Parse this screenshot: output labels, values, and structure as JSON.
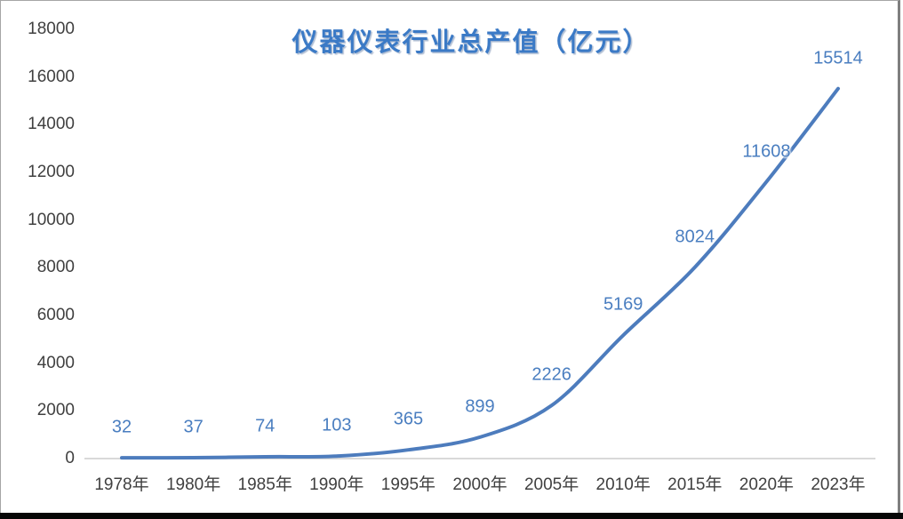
{
  "frame": {
    "background": "#ffffff",
    "border_color": "#a6a6a6",
    "right_border_color": "#7f7f7f",
    "bottom_bar_color": "#060606"
  },
  "chart_data": {
    "type": "line",
    "title": "仪器仪表行业总产值（亿元）",
    "categories": [
      "1978年",
      "1980年",
      "1985年",
      "1990年",
      "1995年",
      "2000年",
      "2005年",
      "2010年",
      "2015年",
      "2020年",
      "2023年"
    ],
    "values": [
      32,
      37,
      74,
      103,
      365,
      899,
      2226,
      5169,
      8024,
      11608,
      15514
    ],
    "data_labels": [
      "32",
      "37",
      "74",
      "103",
      "365",
      "899",
      "2226",
      "5169",
      "8024",
      "11608",
      "15514"
    ],
    "xlabel": "",
    "ylabel": "",
    "ylim": [
      0,
      18000
    ],
    "y_ticks": [
      0,
      2000,
      4000,
      6000,
      8000,
      10000,
      12000,
      14000,
      16000,
      18000
    ],
    "grid": false,
    "legend": false,
    "smooth": true,
    "label_position": "above",
    "colors": {
      "line": "#4d7cbd",
      "data_label": "#4a7ec0",
      "axis_text": "#404040",
      "axis_line": "#d9d9d9",
      "title": "#3b7ac6"
    }
  }
}
